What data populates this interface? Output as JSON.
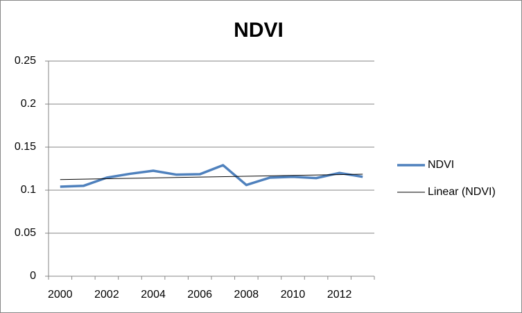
{
  "chart_data": {
    "type": "line",
    "title": "NDVI",
    "categories": [
      "2000",
      null,
      "2002",
      null,
      "2004",
      null,
      "2006",
      null,
      "2008",
      null,
      "2010",
      null,
      "2012",
      null
    ],
    "series": [
      {
        "name": "NDVI",
        "color": "#4f81bd",
        "values": [
          0.104,
          0.105,
          0.1145,
          0.119,
          0.1226,
          0.118,
          0.1185,
          0.129,
          0.106,
          0.1145,
          0.1155,
          0.114,
          0.12,
          0.1155
        ]
      }
    ],
    "trendline": {
      "name": "Linear (NDVI)",
      "color": "#000000"
    },
    "ylim": [
      0,
      0.25
    ],
    "yticks": [
      0,
      0.05,
      0.1,
      0.15,
      0.2,
      0.25
    ],
    "grid": true,
    "legend": "right"
  }
}
